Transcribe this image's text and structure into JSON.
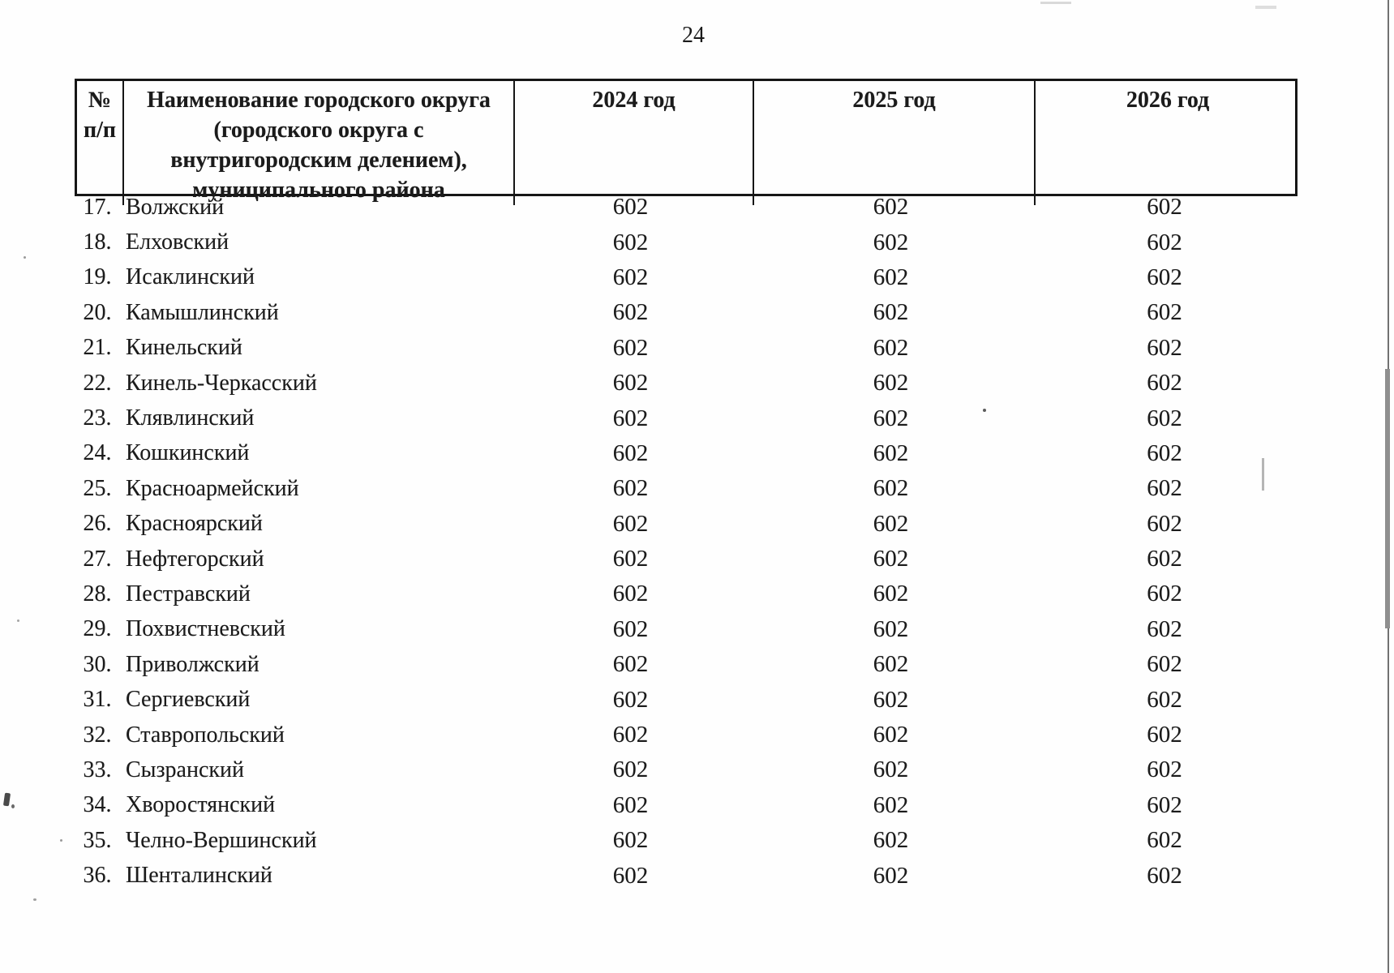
{
  "page": {
    "number": "24"
  },
  "table": {
    "header": {
      "col_num": {
        "line1": "№",
        "line2": "п/п"
      },
      "col_name_lines": [
        "Наименование городского округа",
        "(городского округа с",
        "внутригородским делением),",
        "муниципального района"
      ],
      "col_2024": "2024 год",
      "col_2025": "2025 год",
      "col_2026": "2026 год"
    },
    "rows": [
      {
        "num": "17.",
        "name": "Волжский",
        "y2024": "602",
        "y2025": "602",
        "y2026": "602"
      },
      {
        "num": "18.",
        "name": "Елховский",
        "y2024": "602",
        "y2025": "602",
        "y2026": "602"
      },
      {
        "num": "19.",
        "name": "Исаклинский",
        "y2024": "602",
        "y2025": "602",
        "y2026": "602"
      },
      {
        "num": "20.",
        "name": "Камышлинский",
        "y2024": "602",
        "y2025": "602",
        "y2026": "602"
      },
      {
        "num": "21.",
        "name": "Кинельский",
        "y2024": "602",
        "y2025": "602",
        "y2026": "602"
      },
      {
        "num": "22.",
        "name": "Кинель-Черкасский",
        "y2024": "602",
        "y2025": "602",
        "y2026": "602"
      },
      {
        "num": "23.",
        "name": "Клявлинский",
        "y2024": "602",
        "y2025": "602",
        "y2026": "602"
      },
      {
        "num": "24.",
        "name": "Кошкинский",
        "y2024": "602",
        "y2025": "602",
        "y2026": "602"
      },
      {
        "num": "25.",
        "name": "Красноармейский",
        "y2024": "602",
        "y2025": "602",
        "y2026": "602"
      },
      {
        "num": "26.",
        "name": "Красноярский",
        "y2024": "602",
        "y2025": "602",
        "y2026": "602"
      },
      {
        "num": "27.",
        "name": "Нефтегорский",
        "y2024": "602",
        "y2025": "602",
        "y2026": "602"
      },
      {
        "num": "28.",
        "name": "Пестравский",
        "y2024": "602",
        "y2025": "602",
        "y2026": "602"
      },
      {
        "num": "29.",
        "name": "Похвистневский",
        "y2024": "602",
        "y2025": "602",
        "y2026": "602"
      },
      {
        "num": "30.",
        "name": "Приволжский",
        "y2024": "602",
        "y2025": "602",
        "y2026": "602"
      },
      {
        "num": "31.",
        "name": "Сергиевский",
        "y2024": "602",
        "y2025": "602",
        "y2026": "602"
      },
      {
        "num": "32.",
        "name": "Ставропольский",
        "y2024": "602",
        "y2025": "602",
        "y2026": "602"
      },
      {
        "num": "33.",
        "name": "Сызранский",
        "y2024": "602",
        "y2025": "602",
        "y2026": "602"
      },
      {
        "num": "34.",
        "name": "Хворостянский",
        "y2024": "602",
        "y2025": "602",
        "y2026": "602"
      },
      {
        "num": "35.",
        "name": "Челно-Вершинский",
        "y2024": "602",
        "y2025": "602",
        "y2026": "602"
      },
      {
        "num": "36.",
        "name": "Шенталинский",
        "y2024": "602",
        "y2025": "602",
        "y2026": "602"
      }
    ]
  }
}
